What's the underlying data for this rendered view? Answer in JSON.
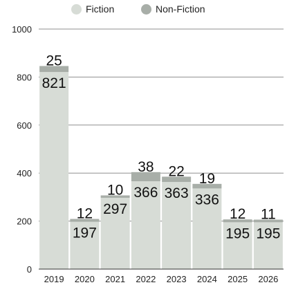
{
  "chart_data": {
    "type": "bar",
    "stacked": true,
    "categories": [
      "2019",
      "2020",
      "2021",
      "2022",
      "2023",
      "2024",
      "2025",
      "2026"
    ],
    "series": [
      {
        "name": "Fiction",
        "values": [
          821,
          197,
          297,
          366,
          363,
          336,
          195,
          195
        ]
      },
      {
        "name": "Non-Fiction",
        "values": [
          25,
          12,
          10,
          38,
          22,
          19,
          12,
          11
        ]
      }
    ],
    "ylim": [
      0,
      1000
    ],
    "yticks": [
      "0",
      "200",
      "400",
      "600",
      "800",
      "1000"
    ],
    "grid": true,
    "legend_position": "top",
    "colors": {
      "Fiction": "#d7dcd6",
      "Non-Fiction": "#a8aea8",
      "grid": "#8f8f8f",
      "text": "#111111"
    }
  }
}
